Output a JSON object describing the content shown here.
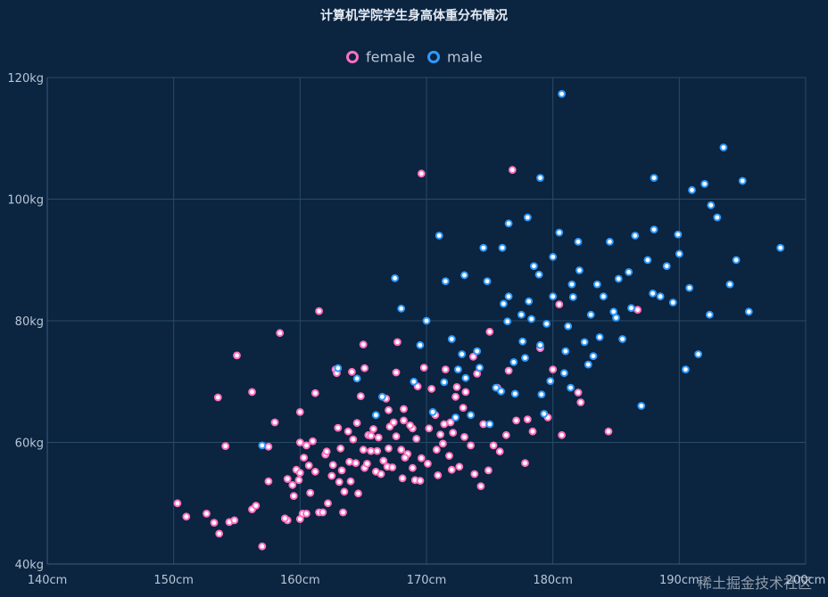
{
  "colors": {
    "background": "#0b2440",
    "female": "#ff6fc1",
    "male": "#2f9bff",
    "point_center": "#ffffff",
    "grid": "#2a4a66",
    "text": "#b9c6d6"
  },
  "watermark": "稀土掘金技术社区",
  "chart_data": {
    "type": "scatter",
    "title": "计算机学院学生身高体重分布情况",
    "legend": {
      "position": "top-center",
      "entries": [
        "female",
        "male"
      ]
    },
    "xlabel": "",
    "ylabel": "",
    "xlim": [
      140,
      200
    ],
    "ylim": [
      40,
      120
    ],
    "x_ticks": [
      140,
      150,
      160,
      170,
      180,
      190,
      200
    ],
    "y_ticks": [
      40,
      60,
      80,
      100,
      120
    ],
    "x_tick_labels": [
      "140cm",
      "150cm",
      "160cm",
      "170cm",
      "180cm",
      "190cm",
      "200cm"
    ],
    "y_tick_labels": [
      "40kg",
      "60kg",
      "80kg",
      "100kg",
      "120kg"
    ],
    "grid": true,
    "series": [
      {
        "name": "female",
        "points": [
          [
            150.3,
            50
          ],
          [
            151,
            47.8
          ],
          [
            152.6,
            48.3
          ],
          [
            153.2,
            46.8
          ],
          [
            153.6,
            45
          ],
          [
            154.1,
            59.4
          ],
          [
            154.4,
            46.9
          ],
          [
            154.8,
            47.2
          ],
          [
            155,
            74.3
          ],
          [
            153.5,
            67.4
          ],
          [
            157,
            42.9
          ],
          [
            156.2,
            68.3
          ],
          [
            156.2,
            49
          ],
          [
            156.5,
            49.6
          ],
          [
            157.5,
            59.3
          ],
          [
            157.5,
            53.6
          ],
          [
            158,
            63.3
          ],
          [
            158.4,
            78
          ],
          [
            159,
            54
          ],
          [
            159.4,
            53
          ],
          [
            159,
            47.2
          ],
          [
            159.5,
            51.2
          ],
          [
            159.7,
            55.5
          ],
          [
            159.9,
            53.8
          ],
          [
            160,
            47.4
          ],
          [
            160,
            60
          ],
          [
            160,
            55
          ],
          [
            160,
            65
          ],
          [
            160.2,
            48.3
          ],
          [
            160.5,
            48.3
          ],
          [
            160.5,
            59.5
          ],
          [
            160.7,
            56.2
          ],
          [
            161.2,
            55.2
          ],
          [
            161.5,
            81.6
          ],
          [
            161.2,
            68.1
          ],
          [
            161.5,
            48.5
          ],
          [
            161.8,
            48.5
          ],
          [
            162,
            58
          ],
          [
            162.2,
            50
          ],
          [
            162.5,
            54.5
          ],
          [
            162.6,
            56.3
          ],
          [
            162.8,
            72
          ],
          [
            163,
            62.4
          ],
          [
            163.1,
            53.5
          ],
          [
            163.2,
            59
          ],
          [
            163.4,
            48.5
          ],
          [
            163.5,
            51.9
          ],
          [
            163.8,
            61.8
          ],
          [
            164,
            53.6
          ],
          [
            164.1,
            71.6
          ],
          [
            164.4,
            56.6
          ],
          [
            164.5,
            63.2
          ],
          [
            164.6,
            51.6
          ],
          [
            165,
            76.1
          ],
          [
            165,
            58.8
          ],
          [
            165.1,
            72.2
          ],
          [
            165.1,
            55.8
          ],
          [
            165.4,
            61.2
          ],
          [
            165.6,
            58.6
          ],
          [
            165.6,
            61.1
          ],
          [
            165.8,
            62.2
          ],
          [
            166,
            55.2
          ],
          [
            166.1,
            58.6
          ],
          [
            166.4,
            54.8
          ],
          [
            166.6,
            57
          ],
          [
            166.9,
            56
          ],
          [
            167,
            59
          ],
          [
            167,
            65.3
          ],
          [
            167.1,
            62.6
          ],
          [
            167.4,
            63.3
          ],
          [
            167.6,
            61
          ],
          [
            167.6,
            71.5
          ],
          [
            167.7,
            76.5
          ],
          [
            168.1,
            54.1
          ],
          [
            168.2,
            63.6
          ],
          [
            168.2,
            65.5
          ],
          [
            168.5,
            58.1
          ],
          [
            168.9,
            55.8
          ],
          [
            168.9,
            62.3
          ],
          [
            169.1,
            53.8
          ],
          [
            169.2,
            60.6
          ],
          [
            169.3,
            69.2
          ],
          [
            169.5,
            53.7
          ],
          [
            169.6,
            104.2
          ],
          [
            169.6,
            57.4
          ],
          [
            170.1,
            56.5
          ],
          [
            170.2,
            62.3
          ],
          [
            170.4,
            68.8
          ],
          [
            170.8,
            58.8
          ],
          [
            170.9,
            54.6
          ],
          [
            171.3,
            59.8
          ],
          [
            171.4,
            63
          ],
          [
            171.5,
            72
          ],
          [
            171.8,
            57.8
          ],
          [
            172,
            55.5
          ],
          [
            172.1,
            61.6
          ],
          [
            172.3,
            67.5
          ],
          [
            172.6,
            56
          ],
          [
            172.9,
            65.7
          ],
          [
            173,
            60.9
          ],
          [
            173.1,
            68.3
          ],
          [
            173.5,
            59.5
          ],
          [
            173.8,
            54.8
          ],
          [
            174,
            71.3
          ],
          [
            174.3,
            52.8
          ],
          [
            174.5,
            63
          ],
          [
            174.9,
            55.4
          ],
          [
            175,
            78.2
          ],
          [
            175.3,
            59.5
          ],
          [
            175.8,
            58.5
          ],
          [
            176.3,
            61.2
          ],
          [
            176.5,
            71.8
          ],
          [
            176.8,
            104.8
          ],
          [
            177.1,
            63.6
          ],
          [
            177.8,
            56.6
          ],
          [
            178,
            63.8
          ],
          [
            178.4,
            61.8
          ],
          [
            179,
            75.5
          ],
          [
            179.6,
            64.1
          ],
          [
            180,
            72
          ],
          [
            180.5,
            82.7
          ],
          [
            180.7,
            61.2
          ],
          [
            182,
            68.2
          ],
          [
            182.2,
            66.6
          ],
          [
            184.4,
            61.8
          ],
          [
            186.7,
            81.8
          ],
          [
            162.1,
            58.5
          ],
          [
            163.9,
            56.8
          ],
          [
            158.8,
            47.5
          ],
          [
            166.2,
            60.8
          ],
          [
            168.3,
            57.5
          ],
          [
            171.1,
            61.3
          ],
          [
            160.8,
            51.7
          ],
          [
            165.3,
            56.5
          ],
          [
            164.8,
            67.6
          ],
          [
            161,
            60.2
          ],
          [
            163.3,
            55.4
          ],
          [
            166.8,
            67.2
          ],
          [
            162.9,
            71.4
          ],
          [
            169.8,
            72.3
          ],
          [
            172.4,
            69.1
          ],
          [
            170.7,
            64.5
          ],
          [
            168.7,
            62.8
          ],
          [
            167.3,
            55.9
          ],
          [
            171.9,
            63.3
          ],
          [
            160.3,
            57.5
          ],
          [
            164.2,
            60.5
          ],
          [
            168,
            58.8
          ],
          [
            173.7,
            74.1
          ],
          [
            175.6,
            69
          ]
        ]
      },
      {
        "name": "male",
        "points": [
          [
            157,
            59.5
          ],
          [
            163,
            72.2
          ],
          [
            164.5,
            70.5
          ],
          [
            166,
            64.5
          ],
          [
            166.5,
            67.5
          ],
          [
            167.5,
            87
          ],
          [
            168,
            82
          ],
          [
            169,
            70
          ],
          [
            169.5,
            76
          ],
          [
            170,
            80
          ],
          [
            170.5,
            65
          ],
          [
            171,
            94
          ],
          [
            171.5,
            86.5
          ],
          [
            172,
            77
          ],
          [
            172.5,
            72
          ],
          [
            173,
            87.5
          ],
          [
            173.5,
            64.5
          ],
          [
            174,
            75
          ],
          [
            174.5,
            92
          ],
          [
            175,
            63
          ],
          [
            175.5,
            69
          ],
          [
            176,
            92
          ],
          [
            176.5,
            96
          ],
          [
            176.5,
            84
          ],
          [
            177,
            68
          ],
          [
            177.5,
            81
          ],
          [
            178,
            97
          ],
          [
            178.5,
            89
          ],
          [
            179,
            76
          ],
          [
            179,
            103.5
          ],
          [
            179.5,
            79.5
          ],
          [
            180,
            84
          ],
          [
            180,
            90.5
          ],
          [
            180.5,
            94.5
          ],
          [
            181,
            75
          ],
          [
            181.5,
            86
          ],
          [
            182,
            93
          ],
          [
            182.5,
            76.5
          ],
          [
            183,
            81
          ],
          [
            183.5,
            86
          ],
          [
            184,
            84
          ],
          [
            184.5,
            93
          ],
          [
            185,
            80.5
          ],
          [
            185.5,
            77
          ],
          [
            186,
            88
          ],
          [
            186.5,
            94
          ],
          [
            187,
            66
          ],
          [
            187.5,
            90
          ],
          [
            188,
            95
          ],
          [
            188,
            103.5
          ],
          [
            188.5,
            84
          ],
          [
            189,
            89
          ],
          [
            189.5,
            83
          ],
          [
            190,
            91
          ],
          [
            190.5,
            72
          ],
          [
            191,
            101.5
          ],
          [
            191.5,
            74.5
          ],
          [
            192,
            102.5
          ],
          [
            192.5,
            99
          ],
          [
            193,
            97
          ],
          [
            193.5,
            108.5
          ],
          [
            194,
            86
          ],
          [
            194.5,
            90
          ],
          [
            195,
            103
          ],
          [
            195.5,
            81.5
          ],
          [
            198,
            92
          ],
          [
            180.7,
            117.3
          ],
          [
            192.4,
            81
          ],
          [
            184.8,
            81.5
          ],
          [
            181.4,
            69
          ],
          [
            174.2,
            72.3
          ],
          [
            178.1,
            83.2
          ],
          [
            172.8,
            74.5
          ],
          [
            176.4,
            79.9
          ],
          [
            179.8,
            70.1
          ],
          [
            182.8,
            72.8
          ],
          [
            175.9,
            68.4
          ],
          [
            178.9,
            87.6
          ],
          [
            180.9,
            71.4
          ],
          [
            183.7,
            77.3
          ],
          [
            186.2,
            82.1
          ],
          [
            174.8,
            86.5
          ],
          [
            177.6,
            76.6
          ],
          [
            179.3,
            64.7
          ],
          [
            181.6,
            83.9
          ],
          [
            176.9,
            73.2
          ],
          [
            173.1,
            70.6
          ],
          [
            178.3,
            80.3
          ],
          [
            182.1,
            88.3
          ],
          [
            185.2,
            86.9
          ],
          [
            187.9,
            84.5
          ],
          [
            189.9,
            94.2
          ],
          [
            190.8,
            85.4
          ],
          [
            176.1,
            82.8
          ],
          [
            179.1,
            67.9
          ],
          [
            183.2,
            74.2
          ],
          [
            171.4,
            69.9
          ],
          [
            172.3,
            64.1
          ],
          [
            177.8,
            73.9
          ],
          [
            181.2,
            79.1
          ]
        ]
      }
    ]
  }
}
